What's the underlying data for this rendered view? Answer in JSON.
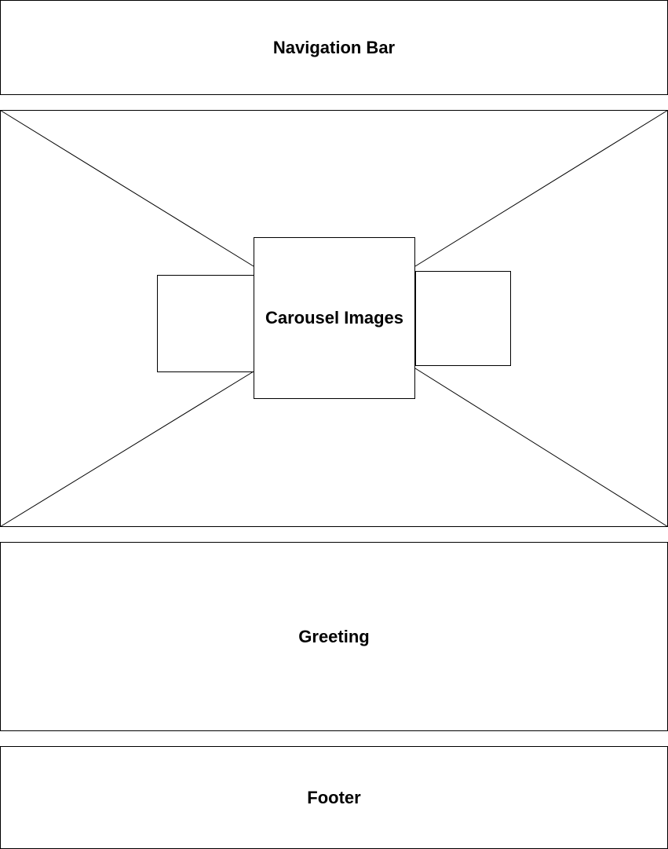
{
  "navigation_bar": {
    "label": "Navigation Bar"
  },
  "carousel": {
    "label": "Carousel Images"
  },
  "greeting": {
    "label": "Greeting"
  },
  "footer": {
    "label": "Footer"
  },
  "colors": {
    "stroke": "#000000",
    "background": "#ffffff"
  }
}
